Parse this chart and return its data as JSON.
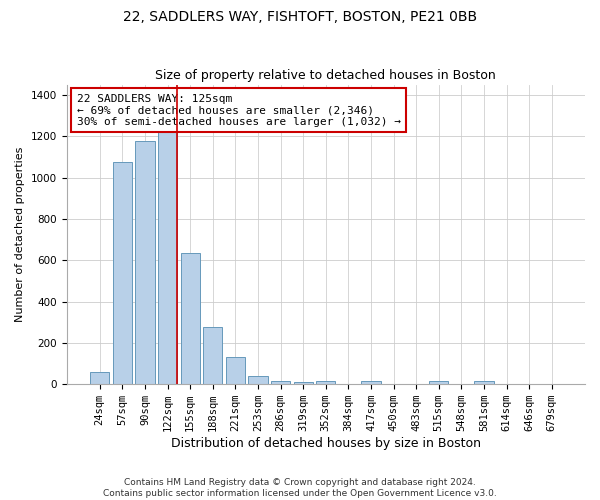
{
  "title1": "22, SADDLERS WAY, FISHTOFT, BOSTON, PE21 0BB",
  "title2": "Size of property relative to detached houses in Boston",
  "xlabel": "Distribution of detached houses by size in Boston",
  "ylabel": "Number of detached properties",
  "categories": [
    "24sqm",
    "57sqm",
    "90sqm",
    "122sqm",
    "155sqm",
    "188sqm",
    "221sqm",
    "253sqm",
    "286sqm",
    "319sqm",
    "352sqm",
    "384sqm",
    "417sqm",
    "450sqm",
    "483sqm",
    "515sqm",
    "548sqm",
    "581sqm",
    "614sqm",
    "646sqm",
    "679sqm"
  ],
  "values": [
    60,
    1075,
    1175,
    1260,
    635,
    275,
    130,
    40,
    15,
    10,
    15,
    0,
    15,
    0,
    0,
    15,
    0,
    15,
    0,
    0,
    0
  ],
  "bar_color": "#b8d0e8",
  "bar_edge_color": "#6699bb",
  "highlight_index": 3,
  "highlight_line_color": "#cc0000",
  "annotation_line1": "22 SADDLERS WAY: 125sqm",
  "annotation_line2": "← 69% of detached houses are smaller (2,346)",
  "annotation_line3": "30% of semi-detached houses are larger (1,032) →",
  "annotation_box_color": "white",
  "annotation_box_edge": "#cc0000",
  "ylim": [
    0,
    1450
  ],
  "yticks": [
    0,
    200,
    400,
    600,
    800,
    1000,
    1200,
    1400
  ],
  "footer": "Contains HM Land Registry data © Crown copyright and database right 2024.\nContains public sector information licensed under the Open Government Licence v3.0.",
  "title1_fontsize": 10,
  "title2_fontsize": 9,
  "xlabel_fontsize": 9,
  "ylabel_fontsize": 8,
  "tick_fontsize": 7.5,
  "annotation_fontsize": 8,
  "footer_fontsize": 6.5
}
